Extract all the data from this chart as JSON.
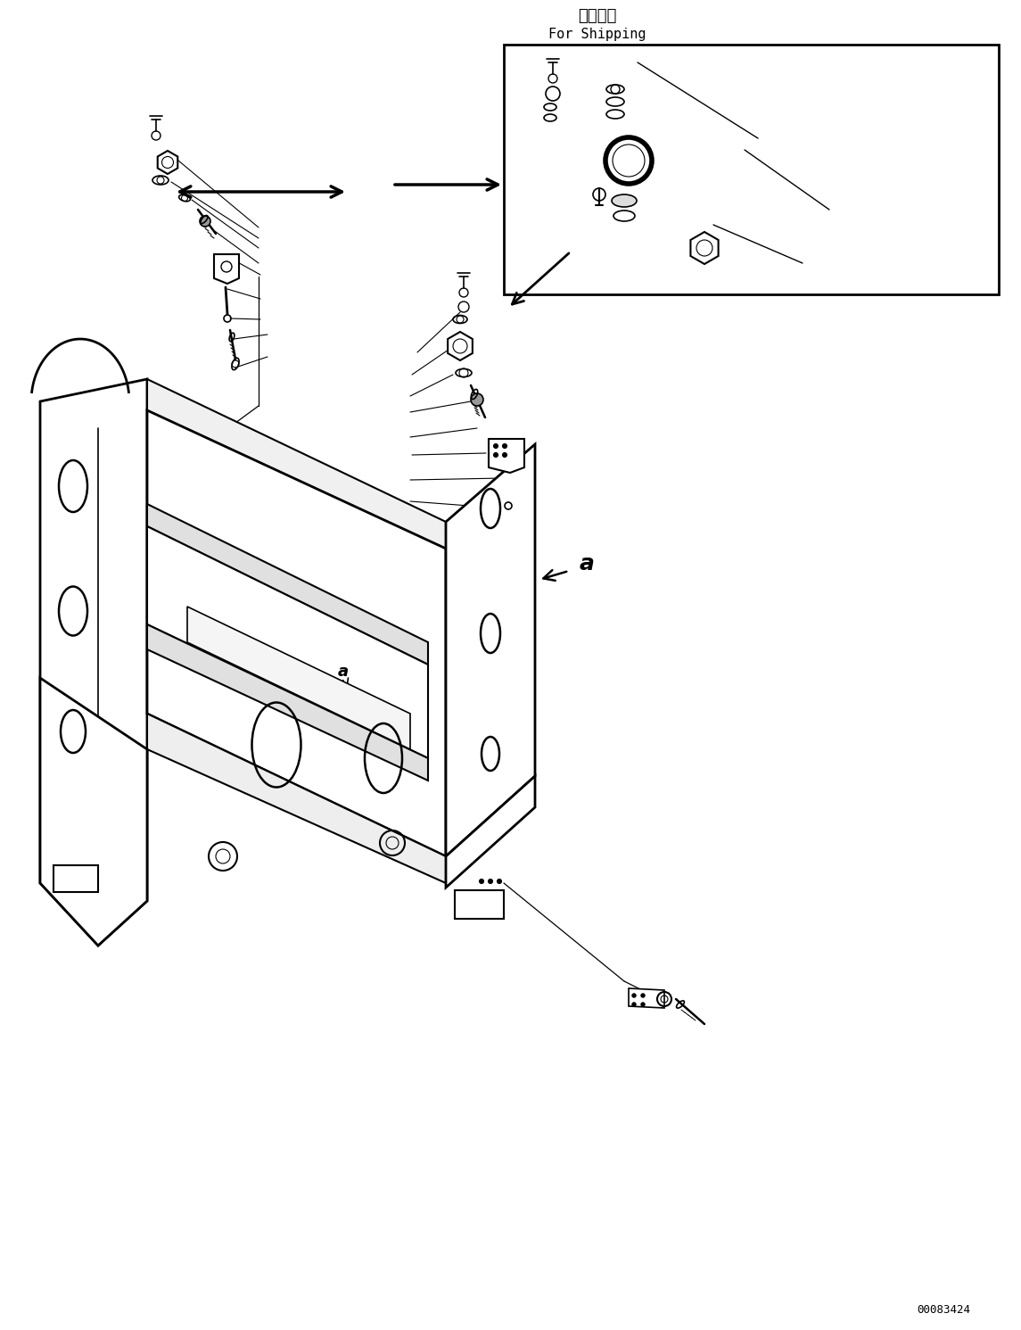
{
  "bg_color": "#ffffff",
  "line_color": "#000000",
  "title_japanese": "運搬部品",
  "title_english": "For Shipping",
  "doc_number": "00083424",
  "label_a": "a",
  "fig_width": 11.45,
  "fig_height": 14.91,
  "dpi": 100
}
